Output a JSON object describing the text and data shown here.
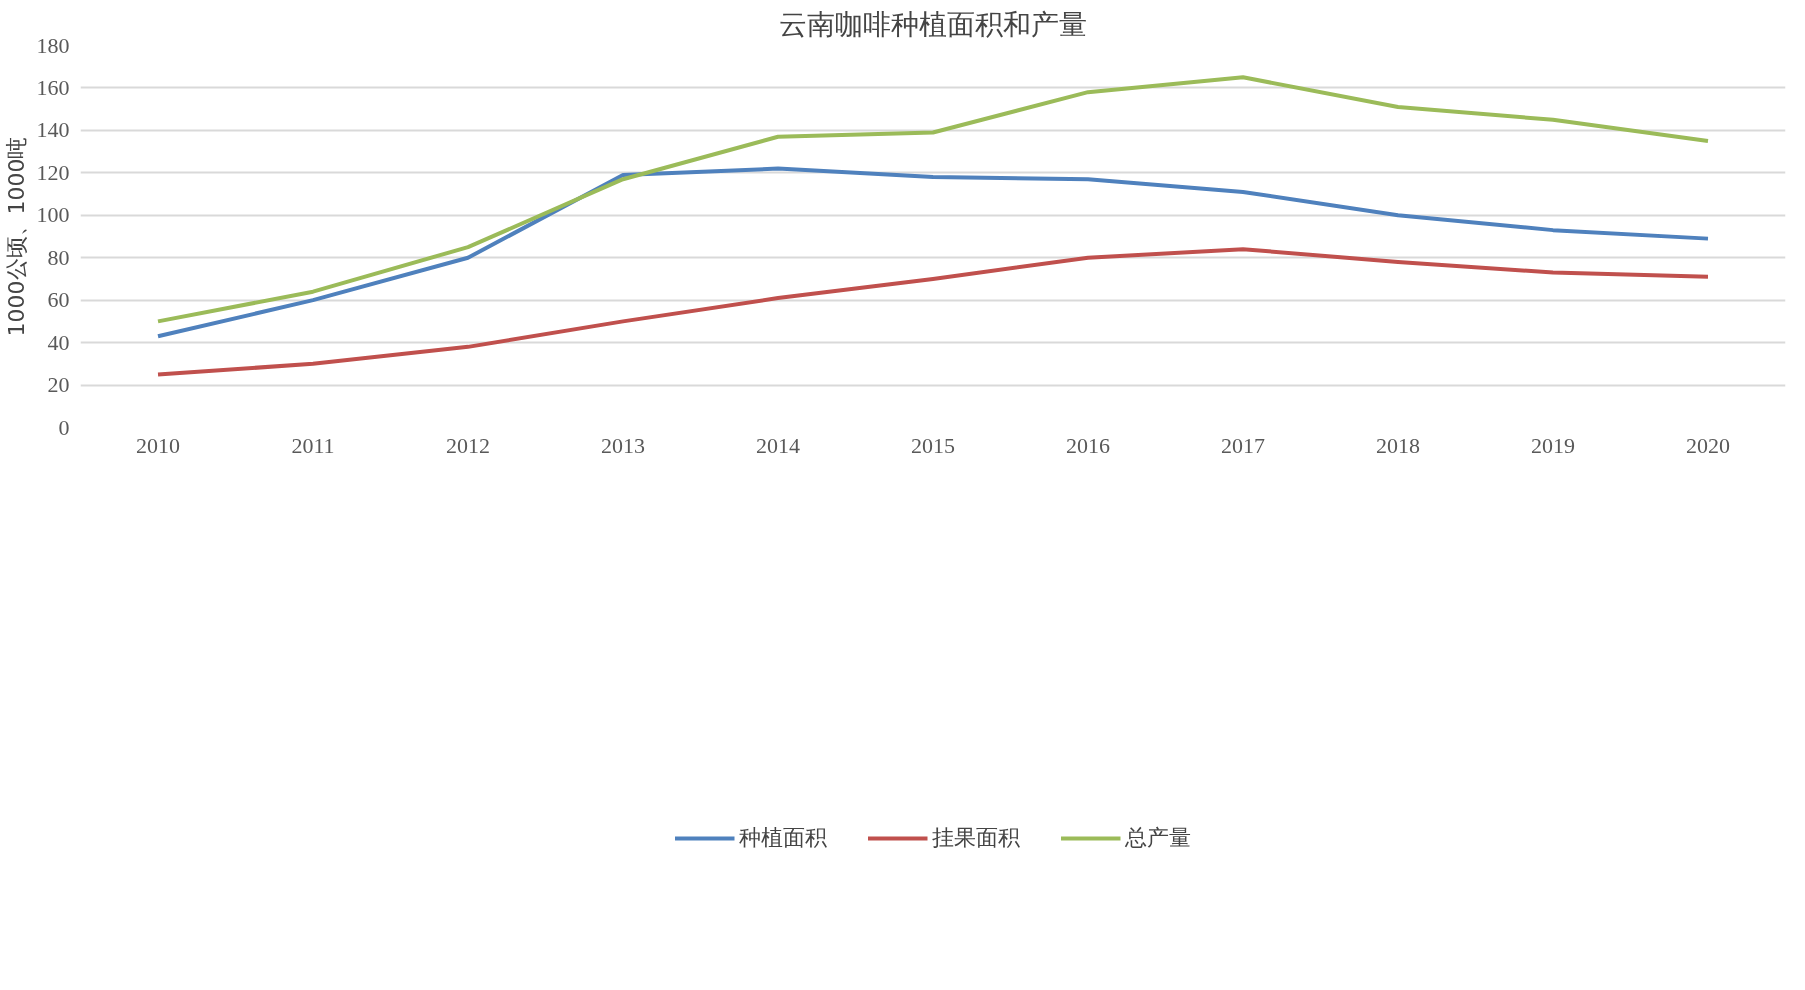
{
  "chart_data": {
    "type": "line",
    "title": "云南咖啡种植面积和产量",
    "ylabel": "1000公顷、1000吨",
    "categories": [
      "2010",
      "2011",
      "2012",
      "2013",
      "2014",
      "2015",
      "2016",
      "2017",
      "2018",
      "2019",
      "2020"
    ],
    "series": [
      {
        "name": "种植面积",
        "color": "#4f81bd",
        "values": [
          43,
          60,
          80,
          119,
          122,
          118,
          117,
          111,
          100,
          93,
          89
        ]
      },
      {
        "name": "挂果面积",
        "color": "#c0504d",
        "values": [
          25,
          30,
          38,
          50,
          61,
          70,
          80,
          84,
          78,
          73,
          71
        ]
      },
      {
        "name": "总产量",
        "color": "#9bbb59",
        "values": [
          50,
          64,
          85,
          117,
          137,
          139,
          158,
          165,
          151,
          145,
          135
        ]
      }
    ],
    "ylim": [
      0,
      180
    ],
    "yticks": [
      0,
      20,
      40,
      60,
      80,
      100,
      120,
      140,
      160,
      180
    ],
    "grid": "y",
    "legend": "bottom",
    "marker": "none",
    "line_style": "solid"
  }
}
